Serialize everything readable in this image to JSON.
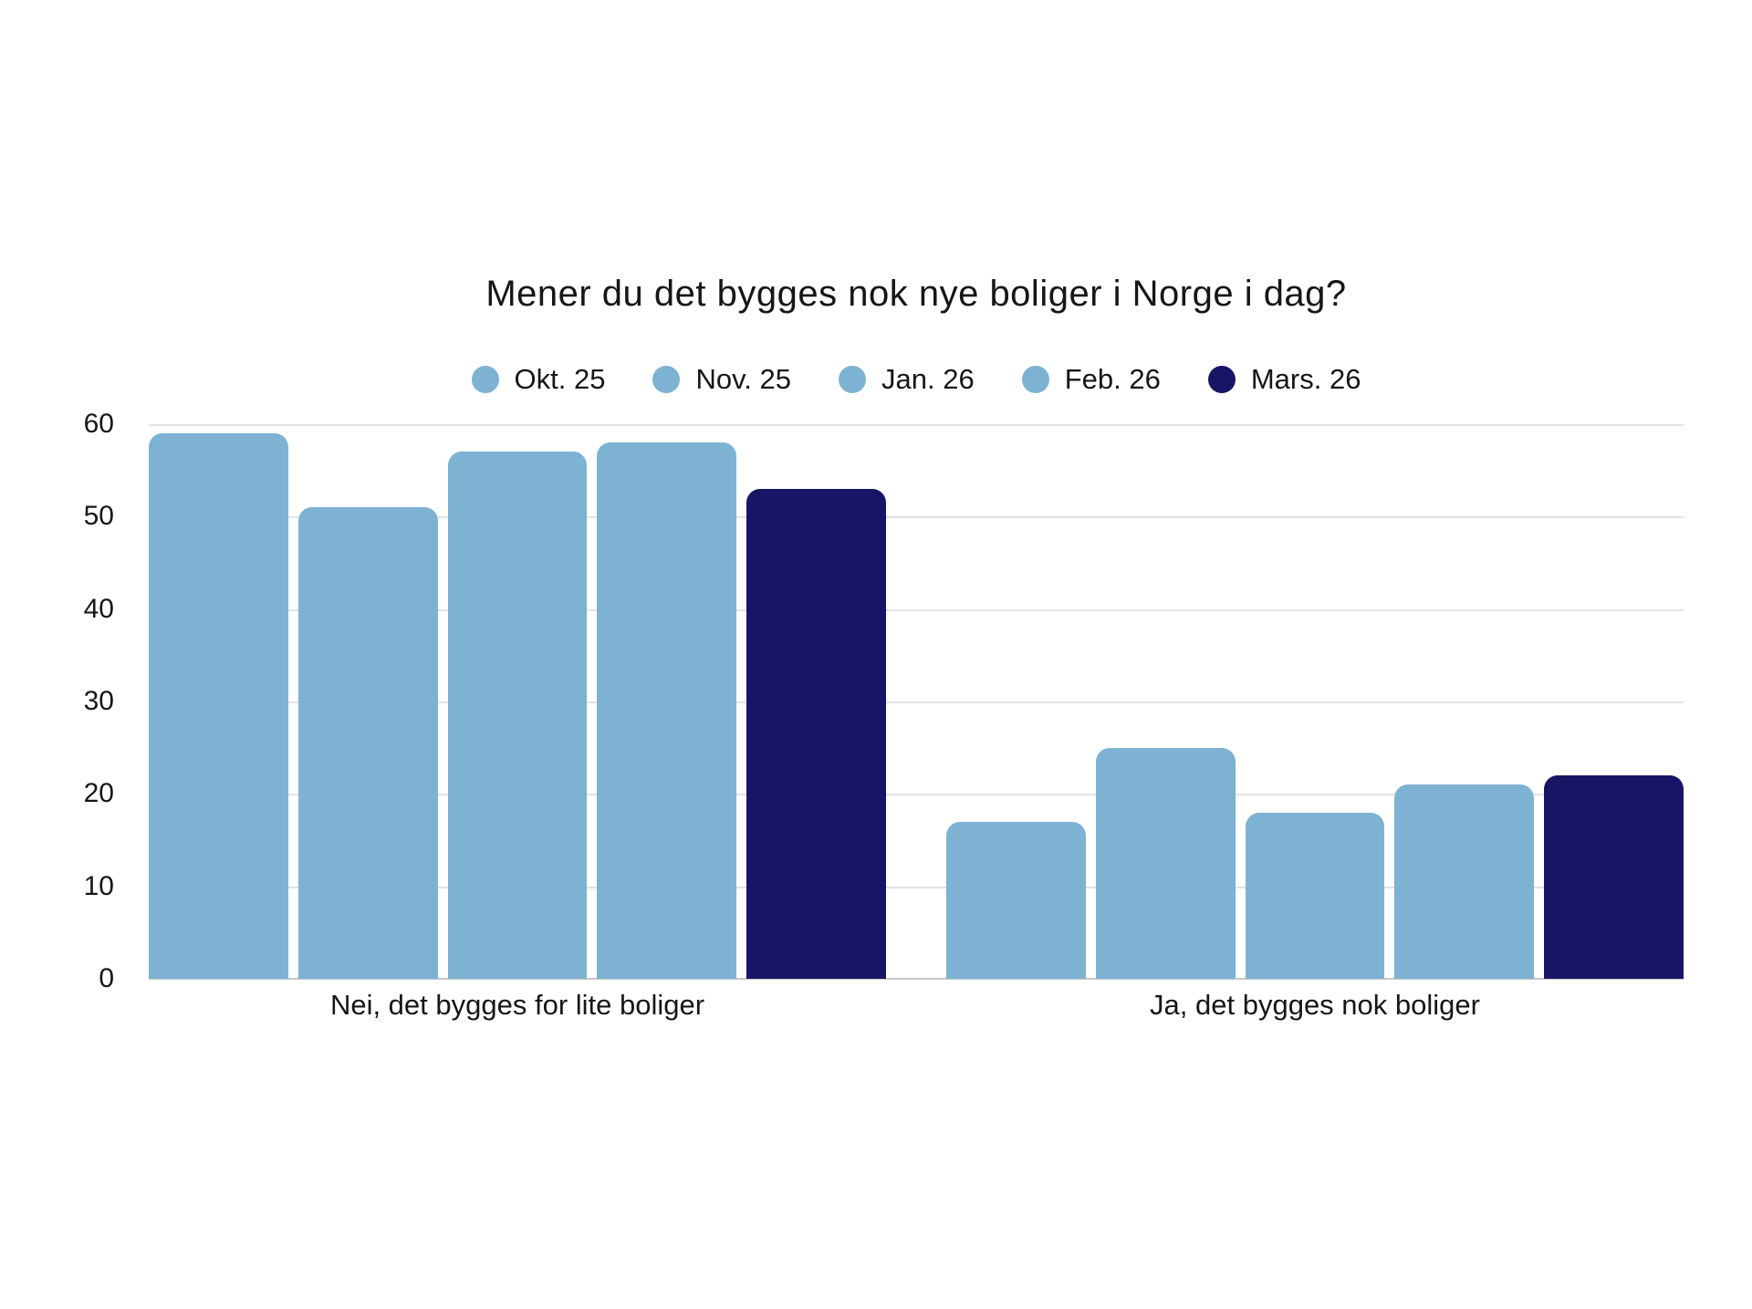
{
  "chart_data": {
    "type": "bar",
    "title": "Mener du det bygges nok nye boliger i Norge i dag?",
    "categories": [
      "Nei, det bygges for lite boliger",
      "Ja, det bygges nok boliger"
    ],
    "series": [
      {
        "name": "Okt. 25",
        "color": "#7db2d3",
        "values": [
          59,
          17
        ]
      },
      {
        "name": "Nov. 25",
        "color": "#7db2d3",
        "values": [
          51,
          25
        ]
      },
      {
        "name": "Jan. 26",
        "color": "#7db2d3",
        "values": [
          57,
          18
        ]
      },
      {
        "name": "Feb. 26",
        "color": "#7db2d3",
        "values": [
          58,
          21
        ]
      },
      {
        "name": "Mars. 26",
        "color": "#191566",
        "values": [
          53,
          22
        ]
      }
    ],
    "ylim": [
      0,
      60
    ],
    "yticks": [
      0,
      10,
      20,
      30,
      40,
      50,
      60
    ],
    "xlabel": "",
    "ylabel": "",
    "grid": true,
    "legend_position": "top",
    "background": "#ffffff",
    "gridline_color": "#e3e3e3",
    "text_color": "#161616"
  }
}
